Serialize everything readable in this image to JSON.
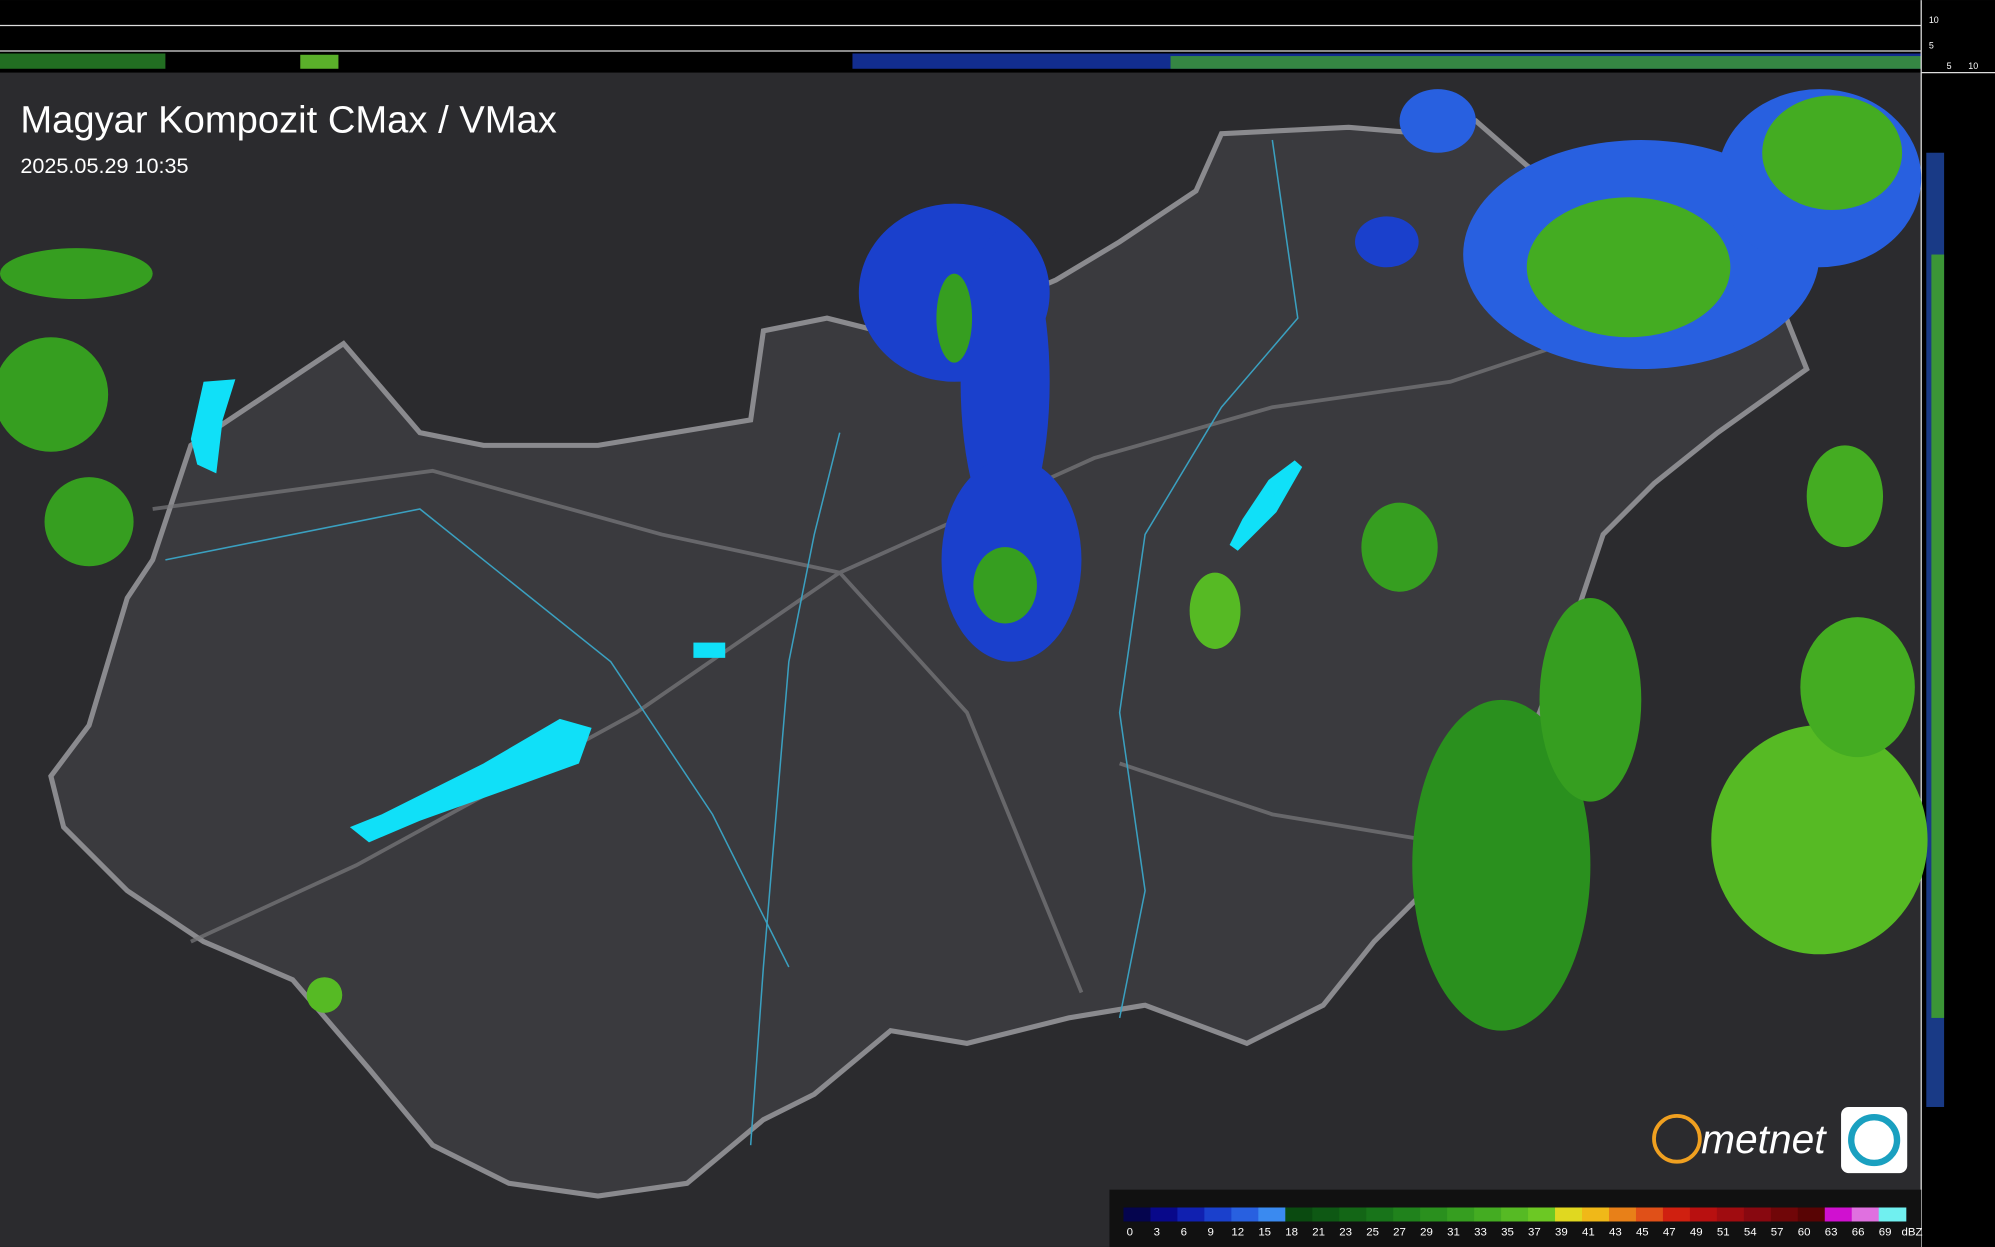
{
  "header": {
    "title": "Magyar Kompozit CMax / VMax",
    "timestamp": "2025.05.29 10:35"
  },
  "side_scale": {
    "top_labels": [
      "10",
      "5"
    ],
    "bottom_labels": [
      "5",
      "10"
    ]
  },
  "logo": {
    "text": "metnet"
  },
  "legend": {
    "unit": "dBZ",
    "ticks": [
      0,
      3,
      6,
      9,
      12,
      15,
      18,
      21,
      23,
      25,
      27,
      29,
      31,
      33,
      35,
      37,
      39,
      41,
      43,
      45,
      47,
      49,
      51,
      54,
      57,
      60,
      63,
      66,
      69
    ],
    "colors": [
      "#05054e",
      "#08088a",
      "#1020b0",
      "#1a40cc",
      "#2860e0",
      "#3a8af0",
      "#0a4a10",
      "#0e5814",
      "#136616",
      "#18741a",
      "#20821c",
      "#2a901e",
      "#369e20",
      "#44ac22",
      "#56ba24",
      "#6cc824",
      "#e0d820",
      "#f0b818",
      "#e88018",
      "#e05018",
      "#d02010",
      "#b81010",
      "#a00c10",
      "#880810",
      "#700608",
      "#580404",
      "#d010d0",
      "#e070e0",
      "#70f0f0"
    ]
  }
}
